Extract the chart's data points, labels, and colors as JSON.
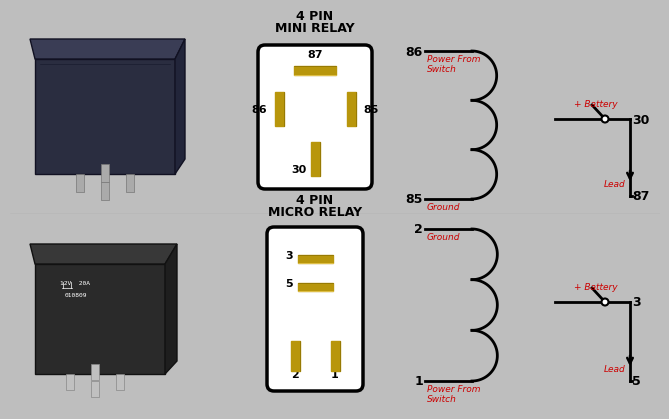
{
  "bg_color": "#bebebe",
  "black": "#000000",
  "red": "#cc0000",
  "gold": "#b8960c",
  "gold_dark": "#8a6e00",
  "white": "#ffffff",
  "dark_relay": "#2a2a3a",
  "darker_relay": "#1a1a2a",
  "gray_relay": "#404040",
  "mini_title_line1": "4 PIN",
  "mini_title_line2": "MINI RELAY",
  "micro_title_line1": "4 PIN",
  "micro_title_line2": "MICRO RELAY",
  "top_coil": {
    "pin_top": "86",
    "label_top": "Power From\nSwitch",
    "pin_bot": "85",
    "label_bot": "Ground"
  },
  "top_switch": {
    "pin_bat": "30",
    "label_bat": "+ Battery",
    "pin_load": "87",
    "label_load": "Lead"
  },
  "bot_coil": {
    "pin_top": "2",
    "label_top": "Ground",
    "pin_bot": "1",
    "label_bot": "Power From\nSwitch"
  },
  "bot_switch": {
    "pin_bat": "3",
    "label_bat": "+ Battery",
    "pin_load": "5",
    "label_load": "Lead"
  }
}
